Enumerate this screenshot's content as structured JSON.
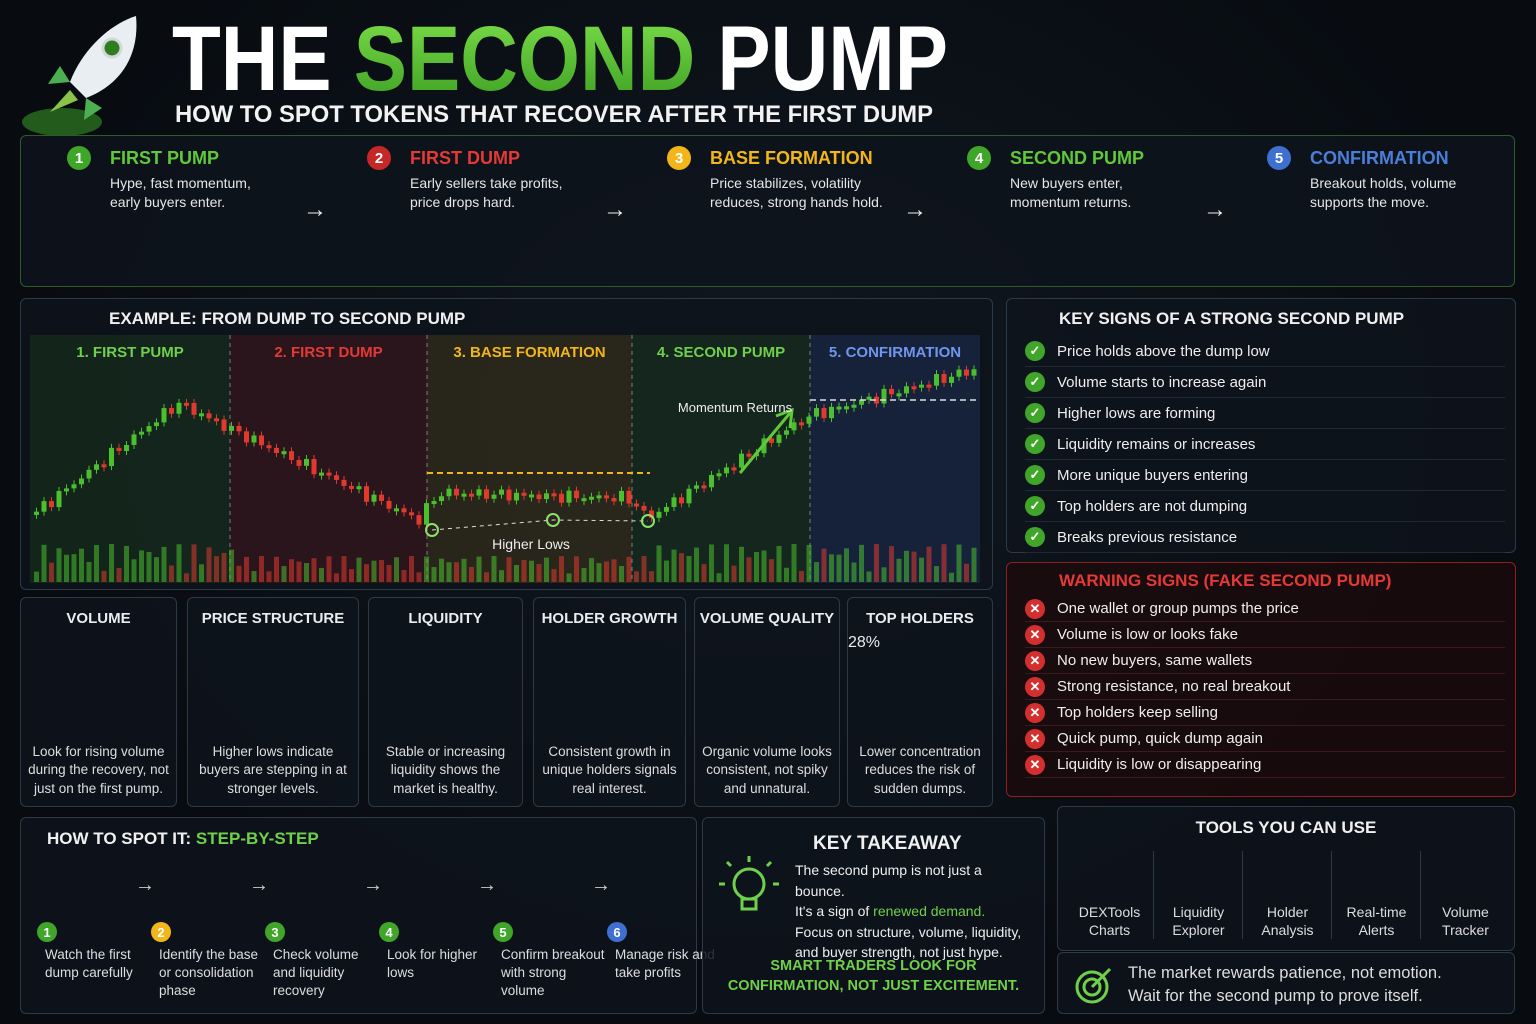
{
  "header": {
    "title_start": "THE",
    "title_highlight": "SECOND",
    "title_end": "PUMP",
    "subtitle": "HOW TO SPOT TOKENS THAT RECOVER AFTER THE FIRST DUMP"
  },
  "stages": [
    {
      "number": "1",
      "title": "FIRST PUMP",
      "text": "Hype, fast momentum, early buyers enter."
    },
    {
      "number": "2",
      "title": "FIRST DUMP",
      "text": "Early sellers take profits, price drops hard."
    },
    {
      "number": "3",
      "title": "BASE FORMATION",
      "text": "Price stabilizes, volatility reduces, strong hands hold."
    },
    {
      "number": "4",
      "title": "SECOND PUMP",
      "text": "New buyers enter, momentum returns."
    },
    {
      "number": "5",
      "title": "CONFIRMATION",
      "text": "Breakout holds, volume supports the move."
    }
  ],
  "example": {
    "title": "EXAMPLE: FROM DUMP TO SECOND PUMP",
    "phases": [
      "1. FIRST PUMP",
      "2. FIRST DUMP",
      "3. BASE FORMATION",
      "4. SECOND PUMP",
      "5. CONFIRMATION"
    ],
    "momentum_label": "Momentum Returns",
    "higher_lows_label": "Higher Lows"
  },
  "key_signs": {
    "title": "KEY SIGNS OF A STRONG SECOND PUMP",
    "items": [
      "Price holds above the dump low",
      "Volume starts to increase again",
      "Higher lows are forming",
      "Liquidity remains or increases",
      "More unique buyers entering",
      "Top holders are not dumping",
      "Breaks previous resistance"
    ]
  },
  "warning_signs": {
    "title": "WARNING SIGNS (FAKE SECOND PUMP)",
    "items": [
      "One wallet or group pumps the price",
      "Volume is low or looks fake",
      "No new buyers, same wallets",
      "Strong resistance, no real breakout",
      "Top holders keep selling",
      "Quick pump, quick dump again",
      "Liquidity is low or disappearing"
    ]
  },
  "metrics": [
    {
      "title": "VOLUME",
      "text": "Look for rising volume during the recovery, not just on the first pump."
    },
    {
      "title": "PRICE STRUCTURE",
      "text": "Higher lows indicate buyers are stepping in at stronger levels."
    },
    {
      "title": "LIQUIDITY",
      "text": "Stable or increasing liquidity shows the market is healthy."
    },
    {
      "title": "HOLDER GROWTH",
      "text": "Consistent growth in unique holders signals real interest."
    },
    {
      "title": "VOLUME QUALITY",
      "text": "Organic volume looks consistent, not spiky and unnatural."
    },
    {
      "title": "TOP HOLDERS",
      "text": "Lower concentration reduces the risk of sudden dumps.",
      "donut_label": "28%"
    }
  ],
  "steps": {
    "title_start": "HOW TO SPOT IT:",
    "title_highlight": "STEP-BY-STEP",
    "items": [
      {
        "number": "1",
        "text": "Watch the first dump carefully"
      },
      {
        "number": "2",
        "text": "Identify the base or consolidation phase"
      },
      {
        "number": "3",
        "text": "Check volume and liquidity recovery"
      },
      {
        "number": "4",
        "text": "Look for higher lows"
      },
      {
        "number": "5",
        "text": "Confirm breakout with strong volume"
      },
      {
        "number": "6",
        "text": "Manage risk and take profits"
      }
    ]
  },
  "takeaway": {
    "title": "KEY TAKEAWAY",
    "line1": "The second pump is not just a bounce.",
    "line2_start": "It's a sign of",
    "line2_highlight": "renewed demand.",
    "line3": "Focus on structure, volume, liquidity, and buyer strength, not just hype.",
    "footer": "SMART TRADERS LOOK FOR CONFIRMATION, NOT JUST EXCITEMENT."
  },
  "tools": {
    "title": "TOOLS YOU CAN USE",
    "items": [
      "DEXTools Charts",
      "Liquidity Explorer",
      "Holder Analysis",
      "Real-time Alerts",
      "Volume Tracker"
    ]
  },
  "quote": {
    "line1": "The market rewards patience, not emotion.",
    "line2": "Wait for the second pump to prove itself."
  }
}
